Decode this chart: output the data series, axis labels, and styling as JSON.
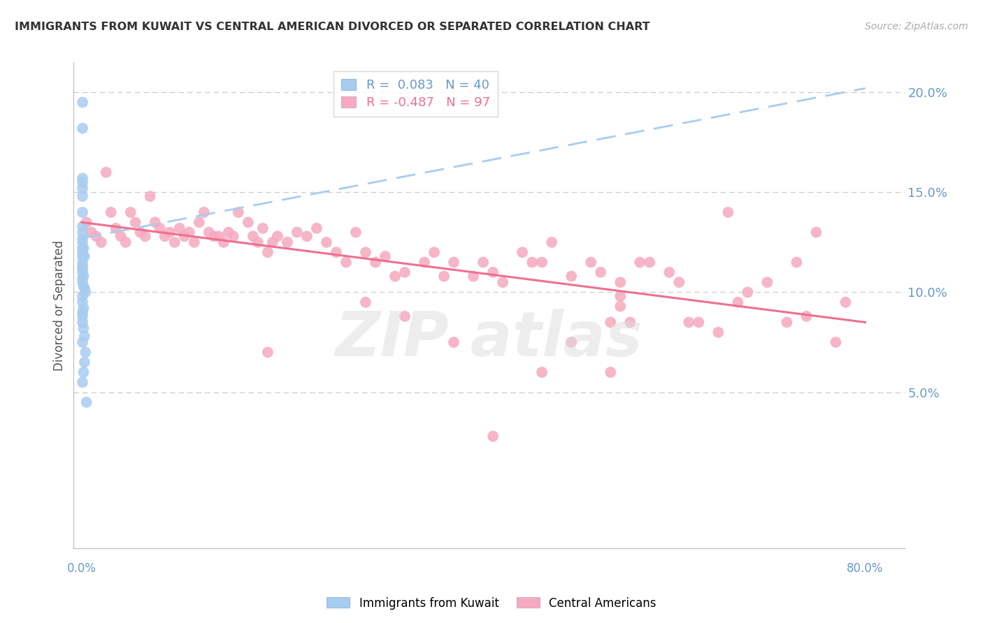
{
  "title": "IMMIGRANTS FROM KUWAIT VS CENTRAL AMERICAN DIVORCED OR SEPARATED CORRELATION CHART",
  "source": "Source: ZipAtlas.com",
  "ylabel": "Divorced or Separated",
  "xlim": [
    -0.008,
    0.84
  ],
  "ylim": [
    -0.028,
    0.215
  ],
  "ytick_values": [
    0.05,
    0.1,
    0.15,
    0.2
  ],
  "ytick_labels": [
    "5.0%",
    "10.0%",
    "15.0%",
    "20.0%"
  ],
  "xtick_label_left": "0.0%",
  "xtick_label_right": "80.0%",
  "blue_scatter": "#A8CCF0",
  "pink_scatter": "#F5AABF",
  "blue_line": "#A8CCF0",
  "pink_line": "#EE7090",
  "grid_color": "#CCCCCC",
  "title_color": "#333333",
  "axis_label_color": "#6699CC",
  "watermark_color": "#DDDDDD",
  "kuwait_line_x0": 0.0,
  "kuwait_line_y0": 0.127,
  "kuwait_line_x1": 0.8,
  "kuwait_line_y1": 0.202,
  "central_line_x0": 0.0,
  "central_line_y0": 0.135,
  "central_line_x1": 0.8,
  "central_line_y1": 0.085,
  "kuwait_x": [
    0.001,
    0.001,
    0.001,
    0.001,
    0.001,
    0.001,
    0.001,
    0.001,
    0.001,
    0.001,
    0.001,
    0.001,
    0.001,
    0.001,
    0.001,
    0.001,
    0.001,
    0.001,
    0.001,
    0.001,
    0.002,
    0.002,
    0.002,
    0.002,
    0.002,
    0.002,
    0.003,
    0.003,
    0.003,
    0.003,
    0.004,
    0.004,
    0.005,
    0.001,
    0.001,
    0.001,
    0.001,
    0.001,
    0.001,
    0.001
  ],
  "kuwait_y": [
    0.195,
    0.182,
    0.157,
    0.155,
    0.152,
    0.148,
    0.14,
    0.133,
    0.13,
    0.127,
    0.125,
    0.122,
    0.12,
    0.118,
    0.115,
    0.113,
    0.112,
    0.11,
    0.107,
    0.105,
    0.122,
    0.108,
    0.103,
    0.092,
    0.082,
    0.06,
    0.118,
    0.102,
    0.078,
    0.065,
    0.1,
    0.07,
    0.045,
    0.098,
    0.095,
    0.09,
    0.088,
    0.085,
    0.075,
    0.055
  ],
  "central_x": [
    0.005,
    0.01,
    0.015,
    0.02,
    0.025,
    0.03,
    0.035,
    0.04,
    0.045,
    0.05,
    0.055,
    0.06,
    0.065,
    0.07,
    0.075,
    0.08,
    0.085,
    0.09,
    0.095,
    0.1,
    0.105,
    0.11,
    0.115,
    0.12,
    0.125,
    0.13,
    0.135,
    0.14,
    0.145,
    0.15,
    0.155,
    0.16,
    0.17,
    0.175,
    0.18,
    0.185,
    0.19,
    0.195,
    0.2,
    0.21,
    0.22,
    0.23,
    0.24,
    0.25,
    0.26,
    0.27,
    0.28,
    0.29,
    0.3,
    0.31,
    0.32,
    0.33,
    0.35,
    0.36,
    0.37,
    0.38,
    0.4,
    0.41,
    0.42,
    0.43,
    0.45,
    0.46,
    0.47,
    0.48,
    0.5,
    0.52,
    0.53,
    0.54,
    0.55,
    0.56,
    0.57,
    0.58,
    0.6,
    0.61,
    0.62,
    0.63,
    0.65,
    0.66,
    0.67,
    0.68,
    0.5,
    0.42,
    0.38,
    0.29,
    0.54,
    0.47,
    0.33,
    0.19,
    0.55,
    0.7,
    0.72,
    0.73,
    0.74,
    0.75,
    0.77,
    0.78,
    0.55
  ],
  "central_y": [
    0.135,
    0.13,
    0.128,
    0.125,
    0.16,
    0.14,
    0.132,
    0.128,
    0.125,
    0.14,
    0.135,
    0.13,
    0.128,
    0.148,
    0.135,
    0.132,
    0.128,
    0.13,
    0.125,
    0.132,
    0.128,
    0.13,
    0.125,
    0.135,
    0.14,
    0.13,
    0.128,
    0.128,
    0.125,
    0.13,
    0.128,
    0.14,
    0.135,
    0.128,
    0.125,
    0.132,
    0.12,
    0.125,
    0.128,
    0.125,
    0.13,
    0.128,
    0.132,
    0.125,
    0.12,
    0.115,
    0.13,
    0.12,
    0.115,
    0.118,
    0.108,
    0.11,
    0.115,
    0.12,
    0.108,
    0.115,
    0.108,
    0.115,
    0.11,
    0.105,
    0.12,
    0.115,
    0.115,
    0.125,
    0.108,
    0.115,
    0.11,
    0.085,
    0.105,
    0.085,
    0.115,
    0.115,
    0.11,
    0.105,
    0.085,
    0.085,
    0.08,
    0.14,
    0.095,
    0.1,
    0.075,
    0.028,
    0.075,
    0.095,
    0.06,
    0.06,
    0.088,
    0.07,
    0.093,
    0.105,
    0.085,
    0.115,
    0.088,
    0.13,
    0.075,
    0.095,
    0.098
  ]
}
